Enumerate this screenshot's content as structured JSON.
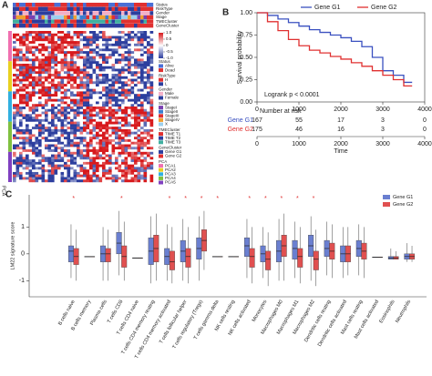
{
  "chart_data": [
    {
      "type": "heatmap",
      "panel": "A",
      "row_labels": [
        "Status",
        "RiskType",
        "Gender",
        "Stage",
        "TMECluster",
        "GeneCluster"
      ],
      "axis_label": "PCA",
      "scale_ticks": [
        {
          "value": 1,
          "label": "1.0"
        },
        0.5,
        0,
        -0.5,
        {
          "value": -1,
          "label": "-1.0"
        }
      ],
      "scale_colors": [
        "#d7191c",
        "#ffffff",
        "#2c3e9e"
      ],
      "legends": [
        {
          "title": "Status",
          "items": [
            {
              "label": "Alive",
              "color": "#4a6fd6"
            },
            {
              "label": "Dead",
              "color": "#e03030"
            }
          ]
        },
        {
          "title": "RiskType",
          "items": [
            {
              "label": "H",
              "color": "#e03030"
            },
            {
              "label": "L",
              "color": "#2c3e9e"
            }
          ]
        },
        {
          "title": "Gender",
          "items": [
            {
              "label": "Male",
              "color": "#f3b0c8"
            },
            {
              "label": "Female",
              "color": "#2c3e9e"
            }
          ]
        },
        {
          "title": "Stage",
          "items": [
            {
              "label": "StageI",
              "color": "#7a3fb0"
            },
            {
              "label": "StageII",
              "color": "#3a7fd0"
            },
            {
              "label": "StageIII",
              "color": "#e03030"
            },
            {
              "label": "StageIV",
              "color": "#f0a030"
            },
            {
              "label": "X",
              "color": "#9dd0ee"
            }
          ]
        },
        {
          "title": "TMECluster",
          "items": [
            {
              "label": "TIME T1",
              "color": "#e03030"
            },
            {
              "label": "TIME T2",
              "color": "#2c3e9e"
            },
            {
              "label": "TIME T3",
              "color": "#40b0a0"
            }
          ]
        },
        {
          "title": "GeneCluster",
          "items": [
            {
              "label": "Gene G1",
              "color": "#2c3e9e"
            },
            {
              "label": "Gene G2",
              "color": "#e03030"
            }
          ]
        },
        {
          "title": "PCA",
          "items": [
            {
              "label": "PCA1",
              "color": "#f070b0"
            },
            {
              "label": "PCA2",
              "color": "#e8d020"
            },
            {
              "label": "PCA3",
              "color": "#30b0e0"
            },
            {
              "label": "PCA4",
              "color": "#80c040"
            },
            {
              "label": "PCA5",
              "color": "#8040c0"
            }
          ]
        }
      ]
    },
    {
      "type": "line",
      "panel": "B",
      "title": "Logrank p < 0.0001",
      "ylabel": "Survival probability",
      "xlabel": "Time",
      "xlim": [
        0,
        4000
      ],
      "ylim": [
        0,
        1
      ],
      "xticks": [
        0,
        1000,
        2000,
        3000,
        4000
      ],
      "yticks": [
        {
          "value": 0,
          "label": "0.00"
        },
        {
          "value": 0.25,
          "label": "0.25"
        },
        {
          "value": 0.5,
          "label": "0.50"
        },
        {
          "value": 0.75,
          "label": "0.75"
        },
        {
          "value": 1,
          "label": "1.00"
        }
      ],
      "x": [
        0,
        250,
        500,
        750,
        1000,
        1250,
        1500,
        1750,
        2000,
        2250,
        2500,
        2750,
        3000,
        3250,
        3500,
        3700
      ],
      "series": [
        {
          "name": "Gene G1",
          "color": "#3a50c0",
          "values": [
            1,
            0.97,
            0.93,
            0.89,
            0.85,
            0.81,
            0.78,
            0.75,
            0.72,
            0.68,
            0.62,
            0.5,
            0.35,
            0.3,
            0.22,
            0.22
          ]
        },
        {
          "name": "Gene G2",
          "color": "#e03030",
          "values": [
            1,
            0.9,
            0.8,
            0.7,
            0.63,
            0.58,
            0.55,
            0.51,
            0.48,
            0.44,
            0.4,
            0.35,
            0.3,
            0.25,
            0.18,
            0.18
          ]
        }
      ],
      "risk_table": {
        "title": "Number at risk",
        "rows": [
          [
            167,
            55,
            17,
            3,
            0
          ],
          [
            175,
            46,
            16,
            3,
            0
          ]
        ]
      }
    },
    {
      "type": "box",
      "panel": "C",
      "ylabel": "LM22 signature score",
      "ylim": [
        -1.6,
        2.2
      ],
      "yticks": [
        -1,
        0,
        1
      ],
      "categories": [
        "B cells naive",
        "B cells memory",
        "Plasma cells",
        "T cells CD8",
        "T cells CD4 naive",
        "T cells CD4 memory resting",
        "T cells CD4 memory activated",
        "T cells follicular helper",
        "T cells regulatory (Tregs)",
        "T cells gamma delta",
        "NK cells resting",
        "NK cells activated",
        "Monocytes",
        "Macrophages M0",
        "Macrophages M1",
        "Macrophages M2",
        "Dendritic cells resting",
        "Dendritic cells activated",
        "Mast cells resting",
        "Mast cells activated",
        "Eosinophils",
        "Neutrophils"
      ],
      "significance": [
        "*",
        null,
        null,
        "*",
        null,
        null,
        "*",
        "*",
        "*",
        "*",
        null,
        "*",
        "*",
        "*",
        "*",
        "*",
        null,
        null,
        null,
        null,
        null,
        null
      ],
      "series": [
        {
          "name": "Gene G1",
          "color": "#6a7fd0",
          "values": [
            [
              -0.9,
              -0.3,
              0.1,
              0.3,
              1.1
            ],
            [
              -0.1,
              -0.1,
              -0.1,
              -0.1,
              -0.1
            ],
            [
              -1.0,
              -0.3,
              0,
              0.3,
              1.0
            ],
            [
              -0.8,
              0,
              0.4,
              0.8,
              1.6
            ],
            [
              -0.15,
              -0.15,
              -0.15,
              -0.15,
              -0.15
            ],
            [
              -1.1,
              -0.4,
              0.1,
              0.6,
              1.4
            ],
            [
              -1.0,
              -0.4,
              -0.1,
              0.2,
              1.1
            ],
            [
              -1.0,
              -0.3,
              0.1,
              0.5,
              1.3
            ],
            [
              -1.0,
              -0.2,
              0.2,
              0.6,
              1.4
            ],
            [
              -0.1,
              -0.1,
              -0.1,
              -0.1,
              -0.1
            ],
            [
              -0.1,
              -0.1,
              -0.1,
              -0.1,
              -0.1
            ],
            [
              -0.9,
              -0.1,
              0.3,
              0.6,
              1.3
            ],
            [
              -0.9,
              -0.3,
              0,
              0.3,
              1.0
            ],
            [
              -1.0,
              -0.3,
              0.1,
              0.5,
              1.3
            ],
            [
              -0.9,
              -0.2,
              0.2,
              0.5,
              1.2
            ],
            [
              -1.0,
              -0.1,
              0.3,
              0.7,
              1.4
            ],
            [
              -0.8,
              -0.1,
              0.2,
              0.5,
              1.2
            ],
            [
              -0.9,
              -0.3,
              0,
              0.3,
              1.0
            ],
            [
              -0.8,
              -0.1,
              0.2,
              0.5,
              1.1
            ],
            [
              -0.12,
              -0.12,
              -0.12,
              -0.12,
              -0.12
            ],
            [
              -0.2,
              -0.2,
              -0.15,
              -0.1,
              0.2
            ],
            [
              -0.3,
              -0.2,
              -0.1,
              0,
              0.4
            ]
          ]
        },
        {
          "name": "Gene G2",
          "color": "#e05050",
          "values": [
            [
              -1.0,
              -0.4,
              -0.1,
              0.2,
              0.9
            ],
            [
              -0.1,
              -0.1,
              -0.1,
              -0.1,
              -0.1
            ],
            [
              -1.0,
              -0.3,
              0,
              0.2,
              0.9
            ],
            [
              -1.0,
              -0.5,
              -0.1,
              0.3,
              1.2
            ],
            [
              -0.15,
              -0.15,
              -0.15,
              -0.15,
              -0.15
            ],
            [
              -1.0,
              -0.3,
              0.2,
              0.7,
              1.5
            ],
            [
              -1.1,
              -0.6,
              -0.3,
              0.1,
              1.0
            ],
            [
              -1.1,
              -0.5,
              -0.1,
              0.2,
              1.0
            ],
            [
              -0.6,
              0.1,
              0.5,
              0.9,
              1.6
            ],
            [
              -0.1,
              -0.1,
              -0.1,
              -0.1,
              -0.1
            ],
            [
              -0.1,
              -0.1,
              -0.1,
              -0.1,
              -0.1
            ],
            [
              -1.1,
              -0.5,
              -0.1,
              0.2,
              1.0
            ],
            [
              -1.2,
              -0.6,
              -0.2,
              0.1,
              0.8
            ],
            [
              -1.0,
              -0.1,
              0.3,
              0.7,
              1.5
            ],
            [
              -1.1,
              -0.5,
              -0.1,
              0.2,
              1.0
            ],
            [
              -1.2,
              -0.6,
              -0.2,
              0.1,
              0.9
            ],
            [
              -0.9,
              -0.2,
              0.1,
              0.4,
              1.1
            ],
            [
              -0.8,
              -0.3,
              0,
              0.3,
              1.0
            ],
            [
              -0.9,
              -0.2,
              0.1,
              0.4,
              1.0
            ],
            [
              -0.12,
              -0.12,
              -0.12,
              -0.12,
              -0.12
            ],
            [
              -0.2,
              -0.2,
              -0.15,
              -0.1,
              0.1
            ],
            [
              -0.3,
              -0.2,
              -0.1,
              0,
              0.3
            ]
          ]
        }
      ]
    }
  ]
}
